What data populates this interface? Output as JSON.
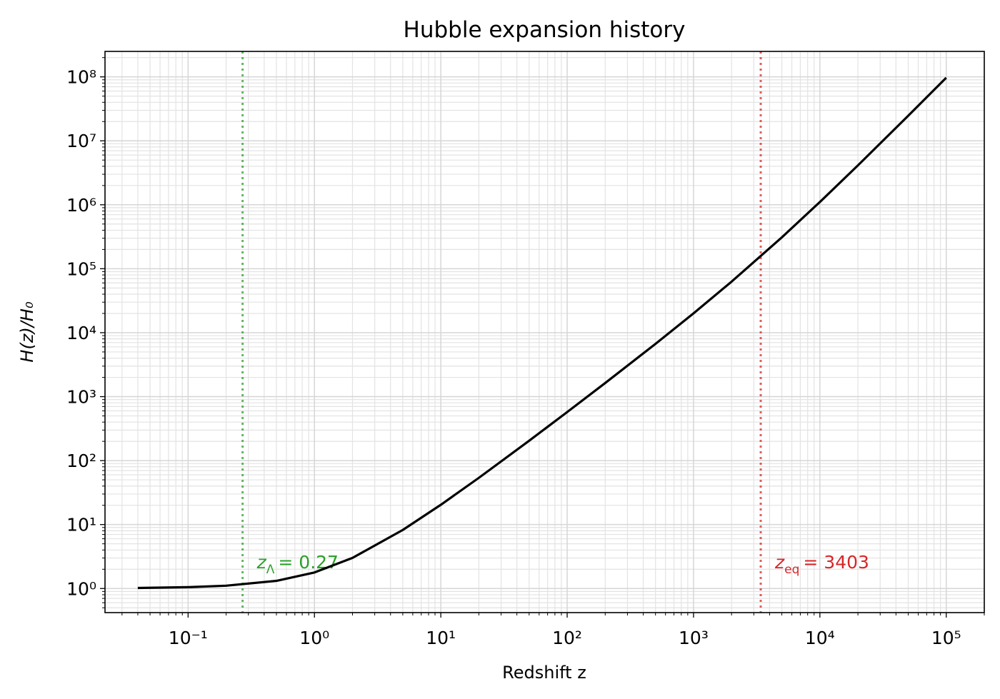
{
  "chart_data": {
    "type": "line",
    "title": "Hubble expansion history",
    "x_label": "Redshift z",
    "y_label": "H(z)/H₀",
    "x": [
      0.04,
      0.1,
      0.2,
      0.5,
      1,
      2,
      5,
      10,
      20,
      50,
      100,
      200,
      500,
      1000,
      2000,
      5000,
      10000,
      20000,
      50000,
      100000
    ],
    "series": [
      {
        "name": "H(z)/H0",
        "color": "#000000",
        "values": [
          1.019,
          1.05,
          1.107,
          1.318,
          1.781,
          3.01,
          8.232,
          20.36,
          53.75,
          204.3,
          573.5,
          1632.8,
          6687,
          20057,
          62790,
          309339,
          1104800,
          4128000,
          24649000,
          97000000
        ]
      }
    ],
    "x_log": true,
    "y_log": true,
    "grid": "both",
    "xlim": [
      0.022,
      200000
    ],
    "ylim": [
      0.42,
      250000000
    ],
    "xticks": [
      {
        "value": 0.1,
        "label": "10⁻¹"
      },
      {
        "value": 1,
        "label": "10⁰"
      },
      {
        "value": 10,
        "label": "10¹"
      },
      {
        "value": 100,
        "label": "10²"
      },
      {
        "value": 1000,
        "label": "10³"
      },
      {
        "value": 10000,
        "label": "10⁴"
      },
      {
        "value": 100000,
        "label": "10⁵"
      }
    ],
    "yticks": [
      {
        "value": 1,
        "label": "10⁰"
      },
      {
        "value": 10,
        "label": "10¹"
      },
      {
        "value": 100,
        "label": "10²"
      },
      {
        "value": 1000,
        "label": "10³"
      },
      {
        "value": 10000,
        "label": "10⁴"
      },
      {
        "value": 100000,
        "label": "10⁵"
      },
      {
        "value": 1000000,
        "label": "10⁶"
      },
      {
        "value": 10000000,
        "label": "10⁷"
      },
      {
        "value": 100000000,
        "label": "10⁸"
      }
    ],
    "vlines": [
      {
        "x": 0.27,
        "color": "#2ca02c",
        "label_var": "z",
        "label_sub": "Λ",
        "label_rest": "= 0.27"
      },
      {
        "x": 3403,
        "color": "#d62728",
        "label_var": "z",
        "label_sub": "eq",
        "label_rest": "= 3403"
      }
    ]
  }
}
